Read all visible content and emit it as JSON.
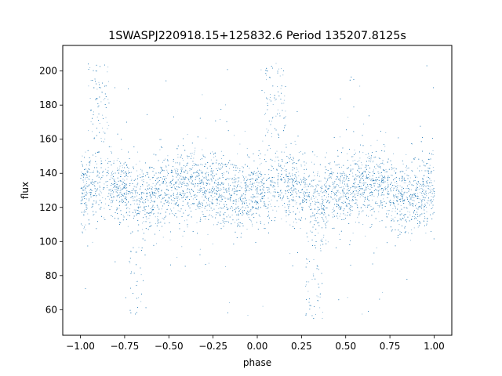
{
  "chart_data": {
    "type": "scatter",
    "title": "1SWASPJ220918.15+125832.6 Period 135207.8125s",
    "xlabel": "phase",
    "ylabel": "flux",
    "xlim": [
      -1.1,
      1.1
    ],
    "ylim": [
      45,
      215
    ],
    "x_ticks": [
      -1.0,
      -0.75,
      -0.5,
      -0.25,
      0.0,
      0.25,
      0.5,
      0.75,
      1.0
    ],
    "x_tick_labels": [
      "−1.00",
      "−0.75",
      "−0.50",
      "−0.25",
      "0.00",
      "0.25",
      "0.50",
      "0.75",
      "1.00"
    ],
    "y_ticks": [
      60,
      80,
      100,
      120,
      140,
      160,
      180,
      200
    ],
    "y_tick_labels": [
      "60",
      "80",
      "100",
      "120",
      "140",
      "160",
      "180",
      "200"
    ],
    "grid": false,
    "legend": "none",
    "point_color": "#1f77b4",
    "phase_range": [
      -1.0,
      1.0
    ],
    "baseline_flux": 130,
    "core_spread": 10,
    "dense_band": [
      105,
      160
    ],
    "flare_phases": [
      -0.9,
      0.1
    ],
    "flare_peak_flux": 205,
    "dip_phases": [
      -0.68,
      0.32
    ],
    "dip_min_flux": 55,
    "series": [
      {
        "type": "scatter",
        "color": "#1f77b4",
        "phase_summary": [
          {
            "phase": -1.0,
            "median": 128,
            "low": 105,
            "high": 150
          },
          {
            "phase": -0.9,
            "median": 132,
            "low": 110,
            "high": 205
          },
          {
            "phase": -0.75,
            "median": 130,
            "low": 105,
            "high": 160
          },
          {
            "phase": -0.68,
            "median": 128,
            "low": 55,
            "high": 158
          },
          {
            "phase": -0.5,
            "median": 127,
            "low": 108,
            "high": 150
          },
          {
            "phase": -0.25,
            "median": 130,
            "low": 105,
            "high": 160
          },
          {
            "phase": 0.0,
            "median": 128,
            "low": 105,
            "high": 150
          },
          {
            "phase": 0.1,
            "median": 132,
            "low": 110,
            "high": 205
          },
          {
            "phase": 0.25,
            "median": 130,
            "low": 105,
            "high": 160
          },
          {
            "phase": 0.32,
            "median": 128,
            "low": 55,
            "high": 158
          },
          {
            "phase": 0.5,
            "median": 127,
            "low": 108,
            "high": 150
          },
          {
            "phase": 0.75,
            "median": 130,
            "low": 105,
            "high": 160
          },
          {
            "phase": 1.0,
            "median": 128,
            "low": 105,
            "high": 150
          }
        ]
      }
    ]
  }
}
